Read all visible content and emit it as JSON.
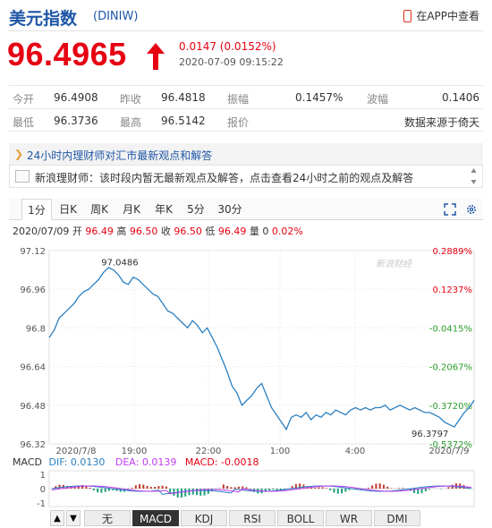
{
  "header": {
    "name": "美元指数",
    "code": "(DINIW)",
    "app_link": "在APP中查看"
  },
  "quote": {
    "price": "96.4965",
    "change": "0.0147 (0.0152%)",
    "datetime": "2020-07-09 09:15:22",
    "direction": "up",
    "color_up": "#e60012"
  },
  "stats": [
    [
      {
        "label": "今开",
        "value": "96.4908"
      },
      {
        "label": "昨收",
        "value": "96.4818"
      },
      {
        "label": "振幅",
        "value": "0.1457%"
      },
      {
        "label": "波幅",
        "value": "0.1406"
      }
    ],
    [
      {
        "label": "最低",
        "value": "96.3736"
      },
      {
        "label": "最高",
        "value": "96.5142"
      },
      {
        "label": "报价",
        "value": "数据来源于倚天"
      }
    ]
  ],
  "comments": {
    "title": "24小时内理财师对汇市最新观点和解答",
    "body": "新浪理财师：该时段内暂无最新观点及解答，点击查看24小时之前的观点及解答"
  },
  "tabs": [
    "1分",
    "日K",
    "周K",
    "月K",
    "年K",
    "5分",
    "30分"
  ],
  "active_tab": "1分",
  "ohlc": {
    "date": "2020/07/09",
    "open_label": "开",
    "open": "96.49",
    "high_label": "高",
    "high": "96.50",
    "close_label": "收",
    "close": "96.50",
    "low_label": "低",
    "low": "96.49",
    "volume_label": "量",
    "volume": "0",
    "change_pct": "0.02%"
  },
  "chart_data": {
    "type": "line",
    "y_left_ticks": [
      "97.12",
      "96.96",
      "96.8",
      "96.64",
      "96.48",
      "96.32"
    ],
    "y_right_ticks": [
      "0.2889%",
      "0.1237%",
      "-0.0415%",
      "-0.2067%",
      "-0.3720%",
      "-0.5372%"
    ],
    "ylim": [
      96.32,
      97.12
    ],
    "x_ticks": [
      "2020/7/8",
      "19:00",
      "22:00",
      "1:00",
      "4:00",
      "2020/7/9"
    ],
    "annotations": {
      "max": "97.0486",
      "min": "96.3797"
    },
    "watermark": "新浪财经",
    "line_color": "#2a7fc1",
    "series": [
      {
        "values": [
          96.76,
          96.79,
          96.84,
          96.86,
          96.88,
          96.9,
          96.93,
          96.95,
          96.96,
          96.98,
          97.0,
          97.03,
          97.05,
          97.04,
          97.02,
          96.99,
          96.98,
          97.01,
          97.0,
          96.98,
          96.96,
          96.94,
          96.93,
          96.9,
          96.87,
          96.86,
          96.84,
          96.82,
          96.8,
          96.83,
          96.81,
          96.78,
          96.8,
          96.76,
          96.72,
          96.67,
          96.62,
          96.56,
          96.53,
          96.48,
          96.5,
          96.52,
          96.55,
          96.57,
          96.52,
          96.47,
          96.44,
          96.41,
          96.38,
          96.43,
          96.44,
          96.43,
          96.45,
          96.42,
          96.44,
          96.43,
          96.45,
          96.44,
          96.46,
          96.45,
          96.44,
          96.46,
          96.47,
          96.46,
          96.47,
          96.46,
          96.47,
          96.47,
          96.48,
          96.46,
          96.47,
          96.48,
          96.47,
          96.46,
          96.47,
          96.46,
          96.45,
          96.45,
          96.44,
          96.43,
          96.41,
          96.4,
          96.39,
          96.42,
          96.45,
          96.47,
          96.5
        ]
      }
    ]
  },
  "macd": {
    "label": "MACD",
    "dif_label": "DIF: 0.0130",
    "dea_label": "DEA: 0.0139",
    "macd_label": "MACD: -0.0018",
    "y_ticks": [
      "1",
      "0",
      "-1"
    ]
  },
  "indicator_tabs": [
    "无",
    "MACD",
    "KDJ",
    "RSI",
    "BOLL",
    "WR",
    "DMI"
  ],
  "active_indicator": "MACD"
}
